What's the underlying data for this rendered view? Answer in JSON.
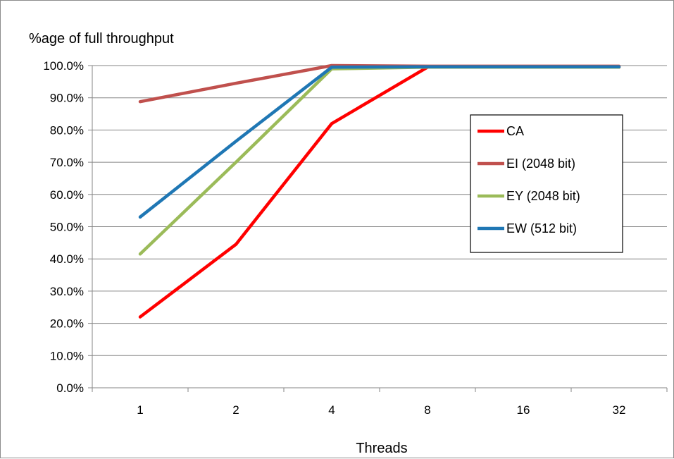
{
  "chart_data": {
    "type": "line",
    "title": "",
    "ylabel": "%age of full throughput",
    "xlabel": "Threads",
    "categories": [
      "1",
      "2",
      "4",
      "8",
      "16",
      "32"
    ],
    "ylim": [
      0,
      100
    ],
    "y_ticks": [
      0,
      10,
      20,
      30,
      40,
      50,
      60,
      70,
      80,
      90,
      100
    ],
    "y_tick_labels": [
      "0.0%",
      "10.0%",
      "20.0%",
      "30.0%",
      "40.0%",
      "50.0%",
      "60.0%",
      "70.0%",
      "80.0%",
      "90.0%",
      "100.0%"
    ],
    "grid": "horizontal",
    "legend_position": "right",
    "series": [
      {
        "name": "CA",
        "color": "#ff0000",
        "values": [
          22,
          44.5,
          82,
          99.5,
          99.5,
          99.5
        ]
      },
      {
        "name": "EI (2048 bit)",
        "color": "#c0504d",
        "values": [
          88.8,
          94.5,
          100,
          99.8,
          99.8,
          99.8
        ]
      },
      {
        "name": "EY (2048 bit)",
        "color": "#9bbb59",
        "values": [
          41.5,
          70,
          99,
          99.5,
          99.5,
          99.5
        ]
      },
      {
        "name": "EW (512 bit)",
        "color": "#1f77b4",
        "values": [
          53,
          76.5,
          99.5,
          99.6,
          99.6,
          99.6
        ]
      }
    ]
  }
}
